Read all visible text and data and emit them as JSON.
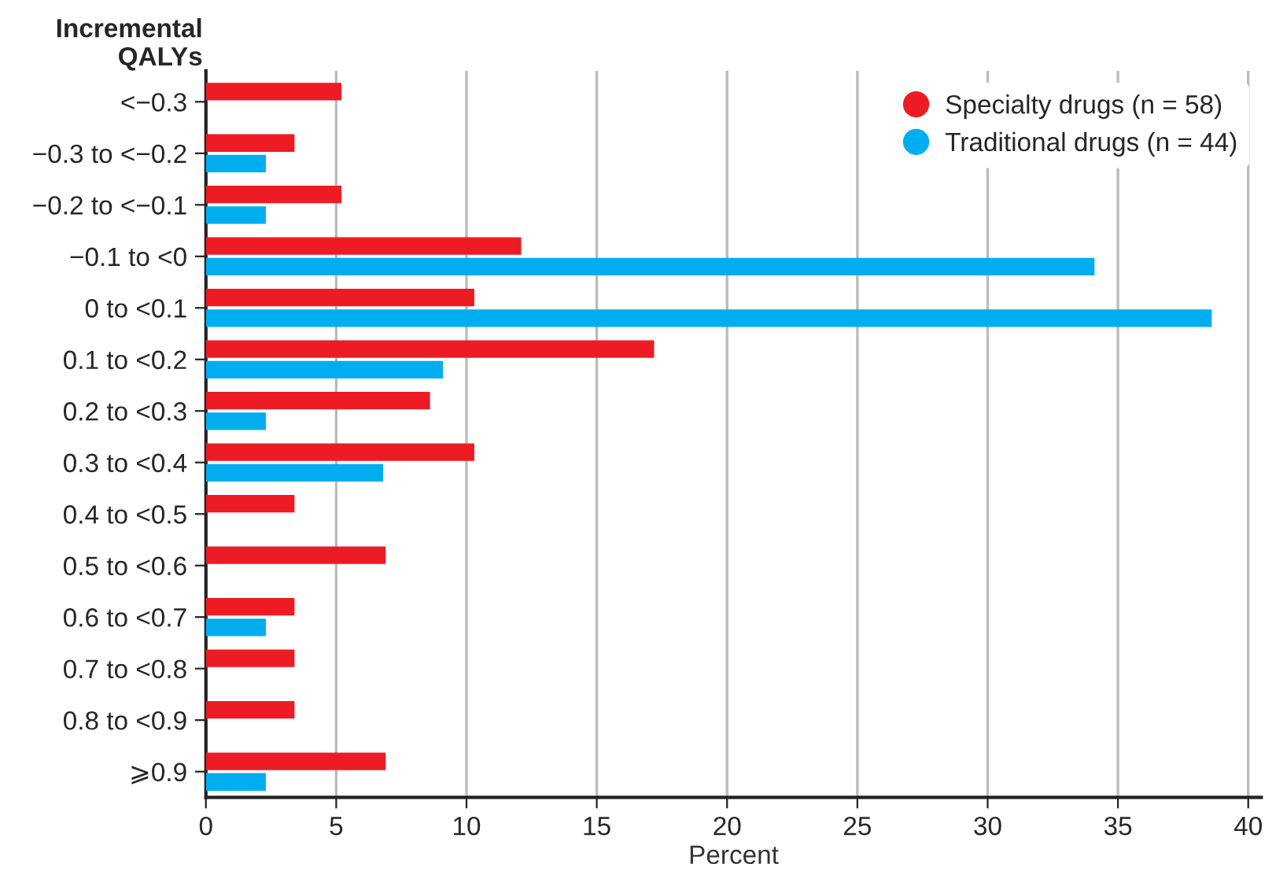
{
  "chart_data": {
    "type": "bar",
    "orientation": "horizontal",
    "xlabel": "Percent",
    "ylabel": "Incremental\nQALYs",
    "categories": [
      "<−0.3",
      "−0.3 to <−0.2",
      "−0.2 to <−0.1",
      "−0.1 to <0",
      "0 to <0.1",
      "0.1 to <0.2",
      "0.2 to <0.3",
      "0.3 to <0.4",
      "0.4 to <0.5",
      "0.5 to <0.6",
      "0.6 to <0.7",
      "0.7 to <0.8",
      "0.8 to <0.9",
      "⩾0.9"
    ],
    "series": [
      {
        "name": "Specialty drugs (n = 58)",
        "color": "#ed1c24",
        "values": [
          5.2,
          3.4,
          5.2,
          12.1,
          10.3,
          17.2,
          8.6,
          10.3,
          3.4,
          6.9,
          3.4,
          3.4,
          3.4,
          6.9
        ]
      },
      {
        "name": "Traditional drugs (n = 44)",
        "color": "#00aeef",
        "values": [
          null,
          2.3,
          2.3,
          34.1,
          38.6,
          9.1,
          2.3,
          6.8,
          null,
          null,
          2.3,
          null,
          null,
          2.3
        ]
      }
    ],
    "xlim": [
      0,
      40.5
    ],
    "xticks": [
      0,
      5,
      10,
      15,
      20,
      25,
      30,
      35,
      40
    ],
    "grid": "x",
    "legend": "top right",
    "marker": "circle"
  }
}
